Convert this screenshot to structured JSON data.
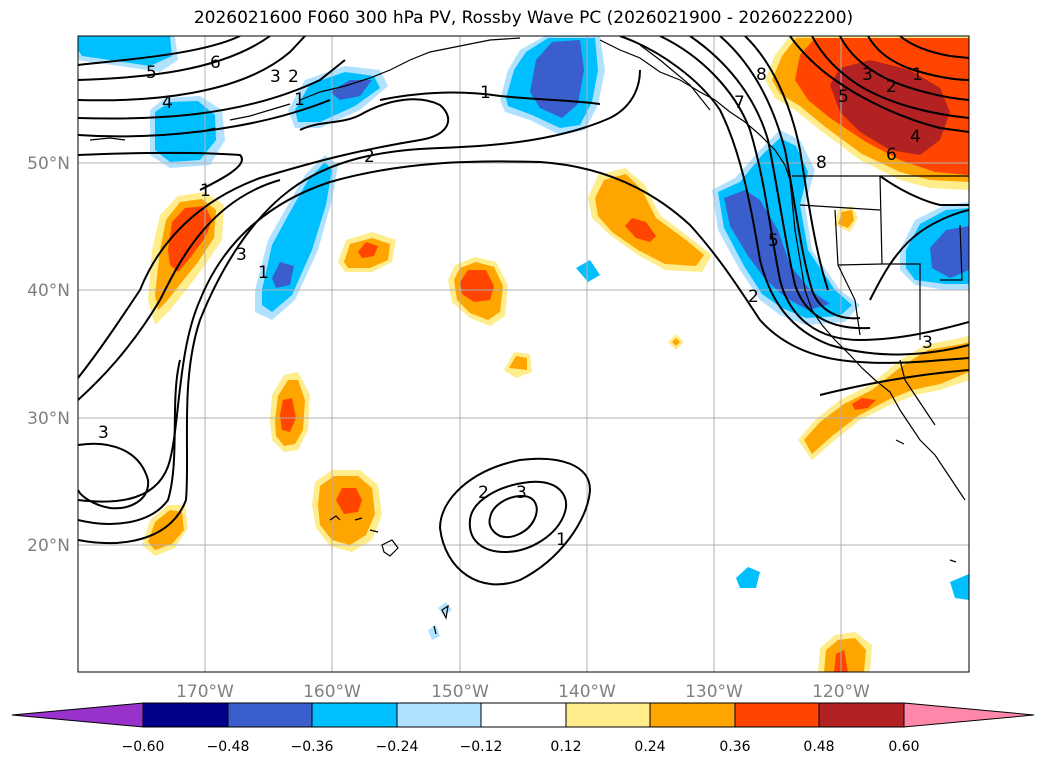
{
  "title": "2026021600 F060 300 hPa PV, Rossby Wave PC (2026021900 - 2026022200)",
  "map": {
    "lon_range": [
      -180,
      -110
    ],
    "lat_range": [
      10,
      60
    ],
    "lat_labels": [
      "50°N",
      "40°N",
      "30°N",
      "20°N"
    ],
    "lon_labels": [
      "170°W",
      "160°W",
      "150°W",
      "140°W",
      "130°W",
      "120°W"
    ],
    "contour_labels": [
      "5",
      "6",
      "3",
      "2",
      "4",
      "1",
      "2",
      "1",
      "3",
      "3",
      "1",
      "2",
      "3",
      "1",
      "7",
      "8",
      "8",
      "5",
      "2",
      "1",
      "3",
      "2",
      "4",
      "6",
      "5",
      "3"
    ]
  },
  "colorbar": {
    "tick_labels": [
      "−0.60",
      "−0.48",
      "−0.36",
      "−0.24",
      "−0.12",
      "0.12",
      "0.24",
      "0.36",
      "0.48",
      "0.60"
    ],
    "colors": [
      "#9932cc",
      "#00008b",
      "#3a5fcd",
      "#00bfff",
      "#b0e2ff",
      "#ffffff",
      "#ffec8b",
      "#ffa500",
      "#ff4500",
      "#b22222",
      "#ff88aa"
    ]
  },
  "colors": {
    "neg_strong": "#3a5fcd",
    "neg_mid": "#00bfff",
    "neg_weak": "#b0e2ff",
    "pos_weak": "#ffec8b",
    "pos_mid": "#ffa500",
    "pos_strong": "#ff4500",
    "pos_max": "#b22222"
  }
}
